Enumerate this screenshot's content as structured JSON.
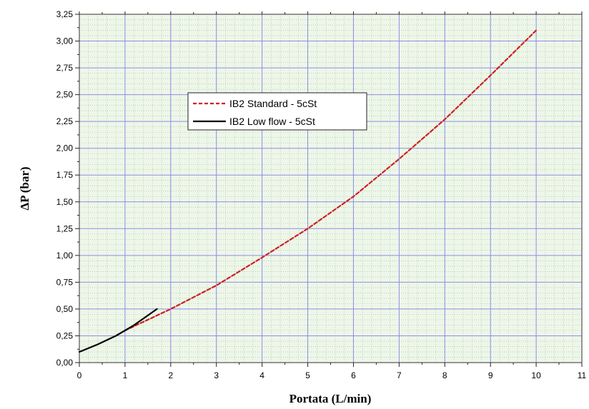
{
  "chart_data": {
    "type": "line",
    "xlabel": "Portata (L/min)",
    "ylabel": "ΔP (bar)",
    "xlim": [
      0,
      11
    ],
    "ylim": [
      0,
      3.25
    ],
    "x_ticks": [
      "0",
      "1",
      "2",
      "3",
      "4",
      "5",
      "6",
      "7",
      "8",
      "9",
      "10",
      "11"
    ],
    "y_ticks": [
      "0,00",
      "0,25",
      "0,50",
      "0,75",
      "1,00",
      "1,25",
      "1,50",
      "1,75",
      "2,00",
      "2,25",
      "2,50",
      "2,75",
      "3,00",
      "3,25"
    ],
    "grid": true,
    "legend_position": "upper-left",
    "series": [
      {
        "name": "IB2 Standard - 5cSt",
        "color": "#cc2222",
        "style": "dashed",
        "points": [
          [
            1.0,
            0.3
          ],
          [
            2.0,
            0.5
          ],
          [
            3.0,
            0.72
          ],
          [
            4.0,
            0.98
          ],
          [
            5.0,
            1.25
          ],
          [
            6.0,
            1.55
          ],
          [
            7.0,
            1.9
          ],
          [
            8.0,
            2.27
          ],
          [
            9.0,
            2.68
          ],
          [
            10.0,
            3.1
          ]
        ]
      },
      {
        "name": "IB2 Low flow - 5cSt",
        "color": "#000000",
        "style": "solid",
        "points": [
          [
            0.0,
            0.1
          ],
          [
            0.4,
            0.17
          ],
          [
            0.8,
            0.25
          ],
          [
            1.2,
            0.35
          ],
          [
            1.7,
            0.5
          ]
        ]
      }
    ]
  }
}
